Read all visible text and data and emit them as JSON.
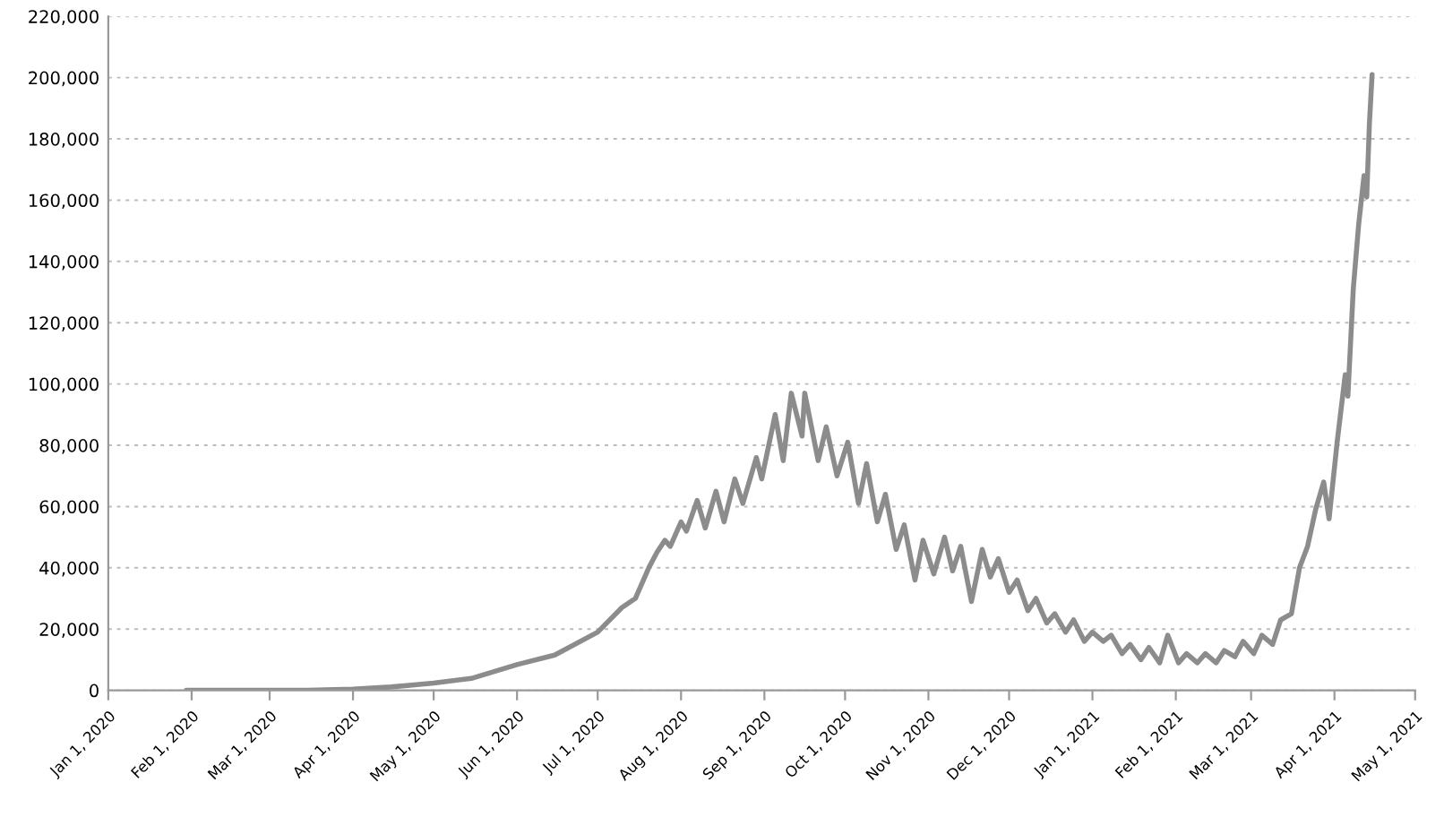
{
  "chart_data": {
    "type": "line",
    "grid": "y",
    "marker": "none",
    "line_style": "solid",
    "xlim": [
      "2020-01-01",
      "2021-05-01"
    ],
    "xticks": [
      {
        "value": "2020-01-01",
        "label": "Jan 1, 2020"
      },
      {
        "value": "2020-02-01",
        "label": "Feb 1, 2020"
      },
      {
        "value": "2020-03-01",
        "label": "Mar 1, 2020"
      },
      {
        "value": "2020-04-01",
        "label": "Apr 1, 2020"
      },
      {
        "value": "2020-05-01",
        "label": "May 1, 2020"
      },
      {
        "value": "2020-06-01",
        "label": "Jun 1, 2020"
      },
      {
        "value": "2020-07-01",
        "label": "Jul 1, 2020"
      },
      {
        "value": "2020-08-01",
        "label": "Aug 1, 2020"
      },
      {
        "value": "2020-09-01",
        "label": "Sep 1, 2020"
      },
      {
        "value": "2020-10-01",
        "label": "Oct 1, 2020"
      },
      {
        "value": "2020-11-01",
        "label": "Nov 1, 2020"
      },
      {
        "value": "2020-12-01",
        "label": "Dec 1, 2020"
      },
      {
        "value": "2021-01-01",
        "label": "Jan 1, 2021"
      },
      {
        "value": "2021-02-01",
        "label": "Feb 1, 2021"
      },
      {
        "value": "2021-03-01",
        "label": "Mar 1, 2021"
      },
      {
        "value": "2021-04-01",
        "label": "Apr 1, 2021"
      },
      {
        "value": "2021-05-01",
        "label": "May 1, 2021"
      }
    ],
    "ylim": [
      0,
      220000
    ],
    "yticks": [
      0,
      {
        "value": 20000,
        "label": "20,000"
      },
      {
        "value": 40000,
        "label": "40,000"
      },
      {
        "value": 60000,
        "label": "60,000"
      },
      {
        "value": 80000,
        "label": "80,000"
      },
      {
        "value": 100000,
        "label": "100,000"
      },
      {
        "value": 120000,
        "label": "120,000"
      },
      {
        "value": 140000,
        "label": "140,000"
      },
      {
        "value": 160000,
        "label": "160,000"
      },
      {
        "value": 180000,
        "label": "180,000"
      },
      {
        "value": 200000,
        "label": "200,000"
      },
      {
        "value": 220000,
        "label": "220,000"
      }
    ],
    "x": [
      "2020-01-30",
      "2020-03-01",
      "2020-03-15",
      "2020-04-01",
      "2020-04-15",
      "2020-05-01",
      "2020-05-15",
      "2020-06-01",
      "2020-06-15",
      "2020-07-01",
      "2020-07-10",
      "2020-07-15",
      "2020-07-20",
      "2020-07-23",
      "2020-07-26",
      "2020-07-28",
      "2020-08-01",
      "2020-08-03",
      "2020-08-07",
      "2020-08-10",
      "2020-08-14",
      "2020-08-17",
      "2020-08-21",
      "2020-08-24",
      "2020-08-29",
      "2020-08-31",
      "2020-09-05",
      "2020-09-08",
      "2020-09-11",
      "2020-09-15",
      "2020-09-16",
      "2020-09-21",
      "2020-09-24",
      "2020-09-28",
      "2020-10-02",
      "2020-10-06",
      "2020-10-09",
      "2020-10-13",
      "2020-10-16",
      "2020-10-20",
      "2020-10-23",
      "2020-10-27",
      "2020-10-30",
      "2020-11-03",
      "2020-11-07",
      "2020-11-10",
      "2020-11-13",
      "2020-11-17",
      "2020-11-21",
      "2020-11-24",
      "2020-11-27",
      "2020-12-01",
      "2020-12-04",
      "2020-12-08",
      "2020-12-11",
      "2020-12-15",
      "2020-12-18",
      "2020-12-22",
      "2020-12-25",
      "2020-12-29",
      "2021-01-01",
      "2021-01-05",
      "2021-01-08",
      "2021-01-12",
      "2021-01-15",
      "2021-01-19",
      "2021-01-22",
      "2021-01-26",
      "2021-01-29",
      "2021-02-02",
      "2021-02-05",
      "2021-02-09",
      "2021-02-12",
      "2021-02-16",
      "2021-02-19",
      "2021-02-23",
      "2021-02-26",
      "2021-03-02",
      "2021-03-05",
      "2021-03-09",
      "2021-03-12",
      "2021-03-16",
      "2021-03-19",
      "2021-03-22",
      "2021-03-25",
      "2021-03-28",
      "2021-03-30",
      "2021-04-02",
      "2021-04-05",
      "2021-04-06",
      "2021-04-08",
      "2021-04-10",
      "2021-04-12",
      "2021-04-13",
      "2021-04-14",
      "2021-04-15"
    ],
    "series": [
      {
        "color": "#8c8c8c",
        "values": [
          0,
          0,
          0,
          400,
          1100,
          2400,
          3900,
          8400,
          11500,
          19000,
          27000,
          30000,
          40000,
          45000,
          49000,
          47000,
          55000,
          52000,
          62000,
          53000,
          65000,
          55000,
          69000,
          61000,
          76000,
          69000,
          90000,
          75000,
          97000,
          83000,
          97000,
          75000,
          86000,
          70000,
          81000,
          61000,
          74000,
          55000,
          64000,
          46000,
          54000,
          36000,
          49000,
          38000,
          50000,
          39000,
          47000,
          29000,
          46000,
          37000,
          43000,
          32000,
          36000,
          26000,
          30000,
          22000,
          25000,
          19000,
          23000,
          16000,
          19000,
          16000,
          18000,
          12000,
          15000,
          10000,
          14000,
          9000,
          18000,
          9000,
          12000,
          9000,
          12000,
          9000,
          13000,
          11000,
          16000,
          12000,
          18000,
          15000,
          23000,
          25000,
          40000,
          47000,
          59000,
          68000,
          56000,
          81000,
          103000,
          96000,
          131000,
          152000,
          168000,
          161000,
          185000,
          201000
        ]
      }
    ]
  }
}
